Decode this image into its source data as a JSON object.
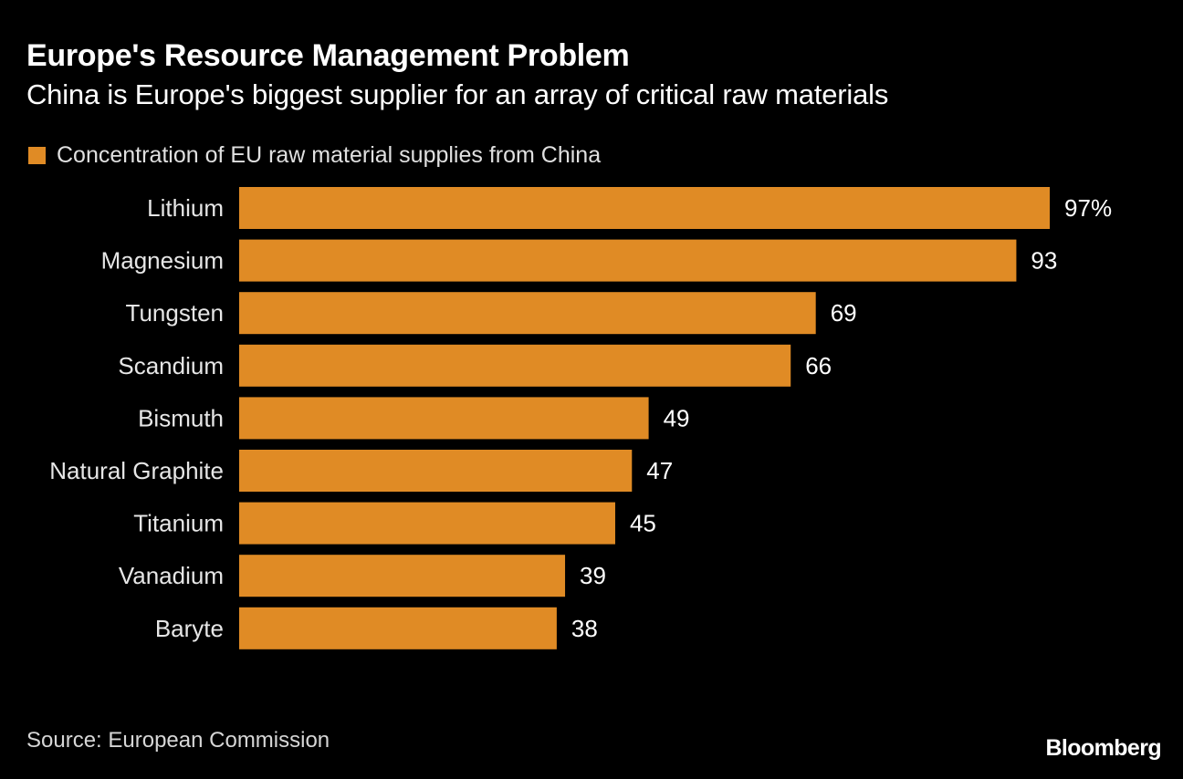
{
  "chart_data": {
    "type": "bar",
    "orientation": "horizontal",
    "title": "Europe's Resource Management Problem",
    "subtitle": "China is Europe's biggest supplier for an array of critical raw materials",
    "legend": [
      "Concentration of EU raw material supplies from China"
    ],
    "legend_position": "top-left",
    "categories": [
      "Lithium",
      "Magnesium",
      "Tungsten",
      "Scandium",
      "Bismuth",
      "Natural Graphite",
      "Titanium",
      "Vanadium",
      "Baryte"
    ],
    "values": [
      97,
      93,
      69,
      66,
      49,
      47,
      45,
      39,
      38
    ],
    "value_labels": [
      "97%",
      "93",
      "69",
      "66",
      "49",
      "47",
      "45",
      "39",
      "38"
    ],
    "unit": "%",
    "xlim": [
      0,
      100
    ],
    "grid": false,
    "series_color": "#e08b25",
    "source": "Source: European Commission",
    "brand": "Bloomberg"
  }
}
